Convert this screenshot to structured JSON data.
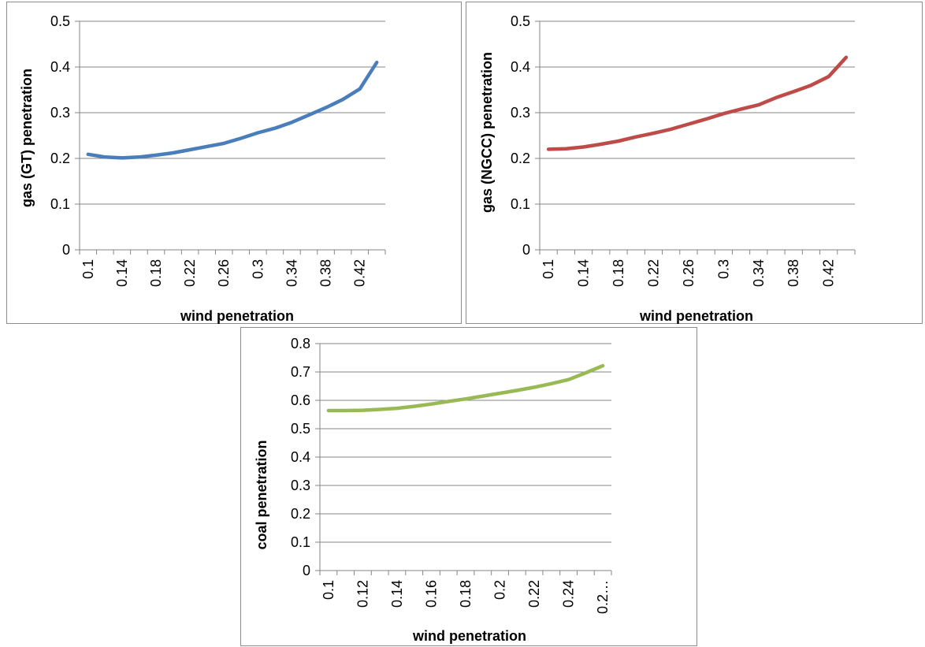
{
  "chart_data": [
    {
      "type": "line",
      "title": "",
      "xlabel": "wind penetration",
      "ylabel": "gas (GT) penetration",
      "ylim": [
        0,
        0.5
      ],
      "yticks": [
        "0",
        "0.1",
        "0.2",
        "0.3",
        "0.4",
        "0.5"
      ],
      "categories": [
        "0.1",
        "0.12",
        "0.14",
        "0.16",
        "0.18",
        "0.2",
        "0.22",
        "0.24",
        "0.26",
        "0.28",
        "0.3",
        "0.32",
        "0.34",
        "0.36",
        "0.38",
        "0.4",
        "0.42",
        "0.44"
      ],
      "category_labels": [
        "0.1",
        "",
        "0.14",
        "",
        "0.18",
        "",
        "0.22",
        "",
        "0.26",
        "",
        "0.3",
        "",
        "0.34",
        "",
        "0.38",
        "",
        "0.42",
        ""
      ],
      "series": [
        {
          "color": "#4a7ebb",
          "values": [
            0.209,
            0.203,
            0.201,
            0.203,
            0.207,
            0.212,
            0.219,
            0.226,
            0.233,
            0.244,
            0.256,
            0.266,
            0.279,
            0.295,
            0.311,
            0.329,
            0.352,
            0.41
          ]
        }
      ],
      "grid": true,
      "legend": "none"
    },
    {
      "type": "line",
      "title": "",
      "xlabel": "wind penetration",
      "ylabel": "gas (NGCC) penetration",
      "ylim": [
        0,
        0.5
      ],
      "yticks": [
        "0",
        "0.1",
        "0.2",
        "0.3",
        "0.4",
        "0.5"
      ],
      "categories": [
        "0.1",
        "0.12",
        "0.14",
        "0.16",
        "0.18",
        "0.2",
        "0.22",
        "0.24",
        "0.26",
        "0.28",
        "0.3",
        "0.32",
        "0.34",
        "0.36",
        "0.38",
        "0.4",
        "0.42",
        "0.44"
      ],
      "category_labels": [
        "0.1",
        "",
        "0.14",
        "",
        "0.18",
        "",
        "0.22",
        "",
        "0.26",
        "",
        "0.3",
        "",
        "0.34",
        "",
        "0.38",
        "",
        "0.42",
        ""
      ],
      "series": [
        {
          "color": "#be4b48",
          "values": [
            0.22,
            0.221,
            0.225,
            0.231,
            0.238,
            0.247,
            0.255,
            0.264,
            0.275,
            0.286,
            0.298,
            0.308,
            0.317,
            0.333,
            0.346,
            0.36,
            0.379,
            0.421
          ]
        }
      ],
      "grid": true,
      "legend": "none"
    },
    {
      "type": "line",
      "title": "",
      "xlabel": "wind penetration",
      "ylabel": "coal penetration",
      "ylim": [
        0,
        0.8
      ],
      "yticks": [
        "0",
        "0.1",
        "0.2",
        "0.3",
        "0.4",
        "0.5",
        "0.6",
        "0.7",
        "0.8"
      ],
      "categories": [
        "0.1",
        "0.11",
        "0.12",
        "0.13",
        "0.14",
        "0.15",
        "0.16",
        "0.17",
        "0.18",
        "0.19",
        "0.2",
        "0.21",
        "0.22",
        "0.23",
        "0.24",
        "0.25",
        "0.26"
      ],
      "category_labels": [
        "0.1",
        "",
        "0.12",
        "",
        "0.14",
        "",
        "0.16",
        "",
        "0.18",
        "",
        "0.2",
        "",
        "0.22",
        "",
        "0.24",
        "",
        "0.2…"
      ],
      "series": [
        {
          "color": "#98b954",
          "values": [
            0.564,
            0.564,
            0.565,
            0.568,
            0.572,
            0.579,
            0.587,
            0.596,
            0.605,
            0.615,
            0.625,
            0.635,
            0.646,
            0.659,
            0.673,
            0.697,
            0.722
          ]
        }
      ],
      "grid": true,
      "legend": "none"
    }
  ]
}
